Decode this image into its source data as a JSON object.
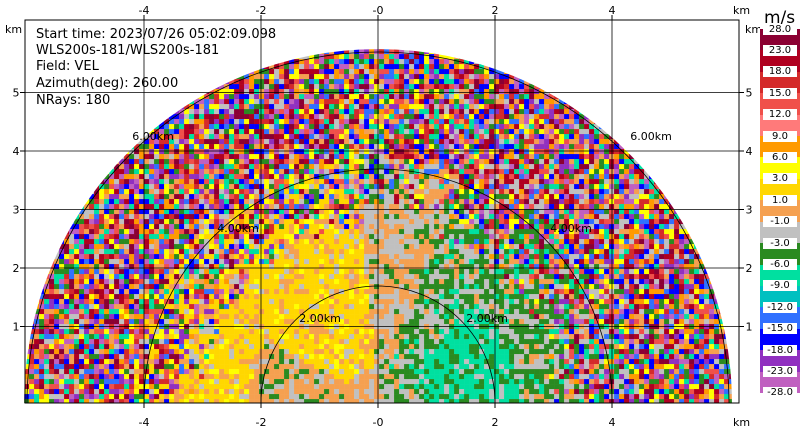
{
  "info": {
    "start_time": "Start time: 2023/07/26 05:02:09.098",
    "station": "WLS200s-181/WLS200s-181",
    "field": "Field: VEL",
    "azimuth": "Azimuth(deg): 260.00",
    "nrays": "NRays: 180"
  },
  "axes": {
    "x_ticks": [
      "-4",
      "-2",
      "-0",
      "2",
      "4"
    ],
    "x_tick_values": [
      -4,
      -2,
      0,
      2,
      4
    ],
    "y_ticks": [
      "1",
      "2",
      "3",
      "4",
      "5"
    ],
    "y_tick_values": [
      1,
      2,
      3,
      4,
      5
    ],
    "unit": "km"
  },
  "rings": {
    "labels": [
      "2.00km",
      "2.00km",
      "4.00km",
      "4.00km",
      "6.00km",
      "6.00km"
    ]
  },
  "colorbar": {
    "title": "m/s",
    "ticks": [
      "28.0",
      "23.0",
      "18.0",
      "15.0",
      "12.0",
      "9.0",
      "6.0",
      "3.0",
      "1.0",
      "-1.0",
      "-3.0",
      "-6.0",
      "-9.0",
      "-12.0",
      "-15.0",
      "-18.0",
      "-23.0",
      "-28.0"
    ],
    "colors": [
      "#8b0033",
      "#b00020",
      "#d42a2a",
      "#f0504a",
      "#ff7a7a",
      "#ff9a00",
      "#ffff00",
      "#ffd700",
      "#f5a050",
      "#c0c0c0",
      "#2a8a20",
      "#00e0a0",
      "#00c0c0",
      "#3070ff",
      "#0000ff",
      "#9030c0",
      "#c060c0"
    ]
  }
}
